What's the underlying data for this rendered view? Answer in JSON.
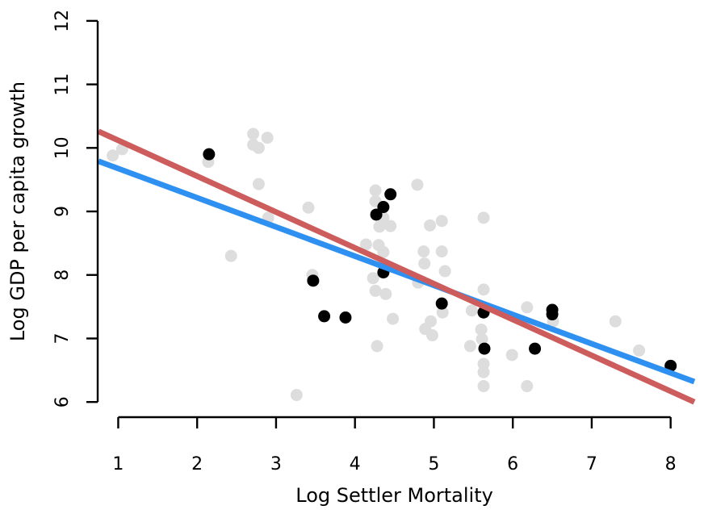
{
  "chart_data": {
    "type": "scatter",
    "title": "",
    "xlabel": "Log Settler Mortality",
    "ylabel": "Log GDP per capita growth",
    "xlim": [
      0.75,
      8.3
    ],
    "ylim": [
      5.85,
      12.1
    ],
    "xticks": [
      1,
      2,
      3,
      4,
      5,
      6,
      7,
      8
    ],
    "yticks": [
      6,
      7,
      8,
      9,
      10,
      11,
      12
    ],
    "grid": false,
    "legend": "none",
    "colors": {
      "background_points": "#dddddd",
      "highlight_points": "#000000",
      "blue_line": "#2e90f0",
      "red_line": "#cd5c5c"
    },
    "background_points": [
      [
        0.93,
        9.88
      ],
      [
        1.05,
        9.98
      ],
      [
        2.14,
        9.78
      ],
      [
        2.43,
        8.3
      ],
      [
        2.71,
        10.22
      ],
      [
        2.71,
        10.05
      ],
      [
        2.78,
        10.0
      ],
      [
        2.78,
        9.43
      ],
      [
        2.89,
        10.16
      ],
      [
        2.9,
        8.9
      ],
      [
        3.26,
        6.11
      ],
      [
        3.41,
        9.06
      ],
      [
        3.46,
        8.0
      ],
      [
        4.14,
        8.48
      ],
      [
        4.23,
        7.95
      ],
      [
        4.26,
        9.33
      ],
      [
        4.26,
        9.16
      ],
      [
        4.26,
        7.75
      ],
      [
        4.28,
        6.88
      ],
      [
        4.3,
        8.47
      ],
      [
        4.31,
        8.76
      ],
      [
        4.36,
        8.9
      ],
      [
        4.36,
        8.36
      ],
      [
        4.39,
        7.7
      ],
      [
        4.45,
        8.77
      ],
      [
        4.48,
        7.31
      ],
      [
        4.79,
        9.42
      ],
      [
        4.8,
        7.88
      ],
      [
        4.87,
        8.37
      ],
      [
        4.88,
        8.18
      ],
      [
        4.89,
        7.15
      ],
      [
        4.95,
        8.78
      ],
      [
        4.96,
        7.27
      ],
      [
        4.98,
        7.05
      ],
      [
        5.1,
        8.85
      ],
      [
        5.1,
        8.37
      ],
      [
        5.11,
        7.41
      ],
      [
        5.14,
        8.06
      ],
      [
        5.46,
        6.88
      ],
      [
        5.48,
        7.44
      ],
      [
        5.6,
        7.14
      ],
      [
        5.61,
        6.99
      ],
      [
        5.63,
        8.9
      ],
      [
        5.63,
        7.77
      ],
      [
        5.63,
        6.6
      ],
      [
        5.63,
        6.47
      ],
      [
        5.63,
        6.25
      ],
      [
        5.99,
        6.74
      ],
      [
        6.18,
        7.49
      ],
      [
        6.18,
        6.25
      ],
      [
        6.51,
        7.27
      ],
      [
        7.3,
        7.27
      ],
      [
        7.6,
        6.81
      ]
    ],
    "highlight_points": [
      [
        2.15,
        9.9
      ],
      [
        3.47,
        7.91
      ],
      [
        3.61,
        7.35
      ],
      [
        3.88,
        7.33
      ],
      [
        4.27,
        8.95
      ],
      [
        4.36,
        9.07
      ],
      [
        4.36,
        8.04
      ],
      [
        4.45,
        9.27
      ],
      [
        5.1,
        7.55
      ],
      [
        5.63,
        7.41
      ],
      [
        5.64,
        6.84
      ],
      [
        6.28,
        6.84
      ],
      [
        6.5,
        7.45
      ],
      [
        6.5,
        7.38
      ],
      [
        8.0,
        6.57
      ]
    ],
    "lines": [
      {
        "color": "blue_line",
        "points": [
          [
            0.75,
            9.79
          ],
          [
            8.3,
            6.32
          ]
        ]
      },
      {
        "color": "red_line",
        "points": [
          [
            0.75,
            10.26
          ],
          [
            8.3,
            6.0
          ]
        ]
      }
    ]
  }
}
